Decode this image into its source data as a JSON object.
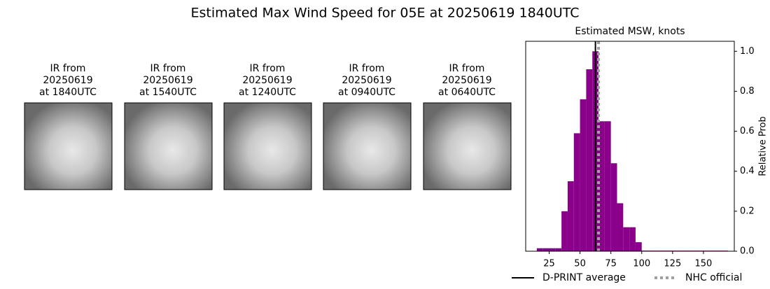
{
  "title": "Estimated Max Wind Speed for 05E at 20250619 1840UTC",
  "panels": [
    {
      "lines": [
        "IR from",
        "20250619",
        "at 1840UTC"
      ]
    },
    {
      "lines": [
        "IR from",
        "20250619",
        "at 1540UTC"
      ]
    },
    {
      "lines": [
        "IR from",
        "20250619",
        "at 1240UTC"
      ]
    },
    {
      "lines": [
        "IR from",
        "20250619",
        "at 0940UTC"
      ]
    },
    {
      "lines": [
        "IR from",
        "20250619",
        "at 0640UTC"
      ]
    }
  ],
  "chart_data": {
    "type": "histogram",
    "title": "Estimated MSW, knots",
    "bins": [
      15,
      20,
      25,
      30,
      35,
      40,
      45,
      50,
      55,
      60,
      65,
      70,
      75,
      80,
      85,
      90,
      95,
      100,
      105,
      110,
      115,
      120,
      125,
      130,
      135,
      140,
      145,
      150,
      155,
      160,
      165,
      170
    ],
    "values": [
      0.015,
      0.015,
      0.015,
      0.015,
      0.2,
      0.35,
      0.59,
      0.76,
      0.91,
      1.0,
      0.65,
      0.65,
      0.44,
      0.24,
      0.12,
      0.12,
      0.045,
      0.003,
      0.003,
      0.003,
      0.003,
      0.003,
      0.003,
      0.003,
      0.003,
      0.003,
      0.003,
      0.003,
      0.003,
      0.003,
      0.003
    ],
    "color": "#8b008b",
    "xlim": [
      6,
      175
    ],
    "xticks": [
      25,
      50,
      75,
      100,
      125,
      150
    ],
    "ylim": [
      0,
      1.05
    ],
    "yticks": [
      {
        "value": 0,
        "label": "0.0"
      },
      0.2,
      0.4,
      0.6,
      0.8,
      {
        "value": 1,
        "label": "1.0"
      }
    ],
    "ylabel": "Relative Prob",
    "reference_lines": [
      {
        "name": "D-PRINT average",
        "value": 62.5,
        "color": "#000000",
        "style": "solid"
      },
      {
        "name": "NHC official",
        "value": 65,
        "color": "#a0a0a0",
        "style": "dotted"
      }
    ]
  }
}
